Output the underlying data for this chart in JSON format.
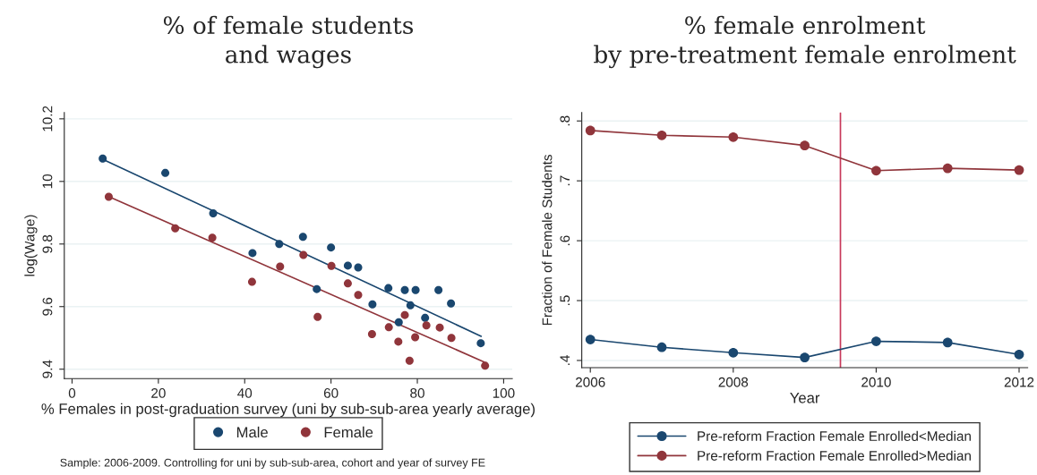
{
  "chart_data": [
    {
      "type": "scatter",
      "title": "% of female students\nand wages",
      "xlabel": "% Females in post-graduation survey (uni by sub-sub-area yearly average)",
      "ylabel": "log(Wage)",
      "xlim": [
        -1.8,
        102
      ],
      "xticks": [
        0,
        20,
        40,
        60,
        80,
        100
      ],
      "ylim": [
        9.37,
        10.22
      ],
      "yticks": [
        {
          "value": 9.4,
          "label": "9.4"
        },
        {
          "value": 9.6,
          "label": "9.6"
        },
        {
          "value": 9.8,
          "label": "9.8"
        },
        {
          "value": 10,
          "label": "10"
        },
        {
          "value": 10.2,
          "label": "10.2"
        }
      ],
      "grid": "y",
      "legend": "bottom",
      "marker": "circle",
      "annotations": [
        "Sample: 2006-2009. Controlling for uni by sub-sub-area, cohort and year of survey FE"
      ],
      "series": [
        {
          "name": "Male",
          "color": "#1a476f",
          "x": [
            7.1,
            21.6,
            32.7,
            41.8,
            48,
            53.5,
            56.7,
            60,
            63.9,
            66.3,
            69.6,
            73.3,
            75.7,
            77.1,
            79.6,
            78.4,
            81.8,
            84.9,
            87.8,
            94.7
          ],
          "values": [
            10.073,
            10.027,
            9.898,
            9.771,
            9.8,
            9.823,
            9.656,
            9.789,
            9.731,
            9.725,
            9.607,
            9.659,
            9.55,
            9.653,
            9.653,
            9.604,
            9.564,
            9.653,
            9.61,
            9.483
          ]
        },
        {
          "name": "Female",
          "color": "#90353b",
          "x": [
            8.5,
            23.9,
            32.5,
            41.7,
            48.2,
            53.6,
            56.9,
            60.1,
            63.9,
            66.3,
            69.5,
            73.4,
            75.6,
            77.1,
            78.2,
            79.5,
            82.1,
            85.2,
            87.9,
            95.7
          ],
          "values": [
            9.951,
            9.85,
            9.82,
            9.679,
            9.728,
            9.765,
            9.567,
            9.73,
            9.674,
            9.637,
            9.512,
            9.534,
            9.488,
            9.573,
            9.427,
            9.502,
            9.54,
            9.533,
            9.5,
            9.411
          ]
        },
        {
          "type": "line",
          "color": "#1a476f",
          "marker": "none",
          "x": [
            7.4,
            94.8
          ],
          "values": [
            10.069,
            9.505
          ]
        },
        {
          "type": "line",
          "color": "#90353b",
          "marker": "none",
          "x": [
            8.6,
            95.5
          ],
          "values": [
            9.951,
            9.423
          ]
        }
      ]
    },
    {
      "type": "line",
      "title": "% female enrolment\nby pre-treatment female enrolment",
      "xlabel": "Year",
      "ylabel": "Fraction of Female Students",
      "xlim": [
        2005.88,
        2012.12
      ],
      "xticks": [
        2006,
        2008,
        2010,
        2012
      ],
      "ylim": [
        0.388,
        0.814
      ],
      "yticks": [
        {
          "value": 0.4,
          "label": ".4"
        },
        {
          "value": 0.5,
          "label": ".5"
        },
        {
          "value": 0.6,
          "label": ".6"
        },
        {
          "value": 0.7,
          "label": ".7"
        },
        {
          "value": 0.8,
          "label": ".8"
        }
      ],
      "grid": "y",
      "legend": "bottom",
      "marker": "circle",
      "ref_lines": [
        {
          "axis": "x",
          "value": 2009.5,
          "color": "#c8385a"
        }
      ],
      "x": [
        2006,
        2007,
        2008,
        2009,
        2010,
        2011,
        2012
      ],
      "series": [
        {
          "name": "Pre-reform Fraction Female Enrolled<Median",
          "color": "#1a476f",
          "values": [
            0.435,
            0.422,
            0.413,
            0.405,
            0.432,
            0.43,
            0.41
          ]
        },
        {
          "name": "Pre-reform Fraction Female Enrolled>Median",
          "color": "#90353b",
          "values": [
            0.784,
            0.776,
            0.773,
            0.759,
            0.717,
            0.721,
            0.718
          ]
        }
      ]
    }
  ]
}
